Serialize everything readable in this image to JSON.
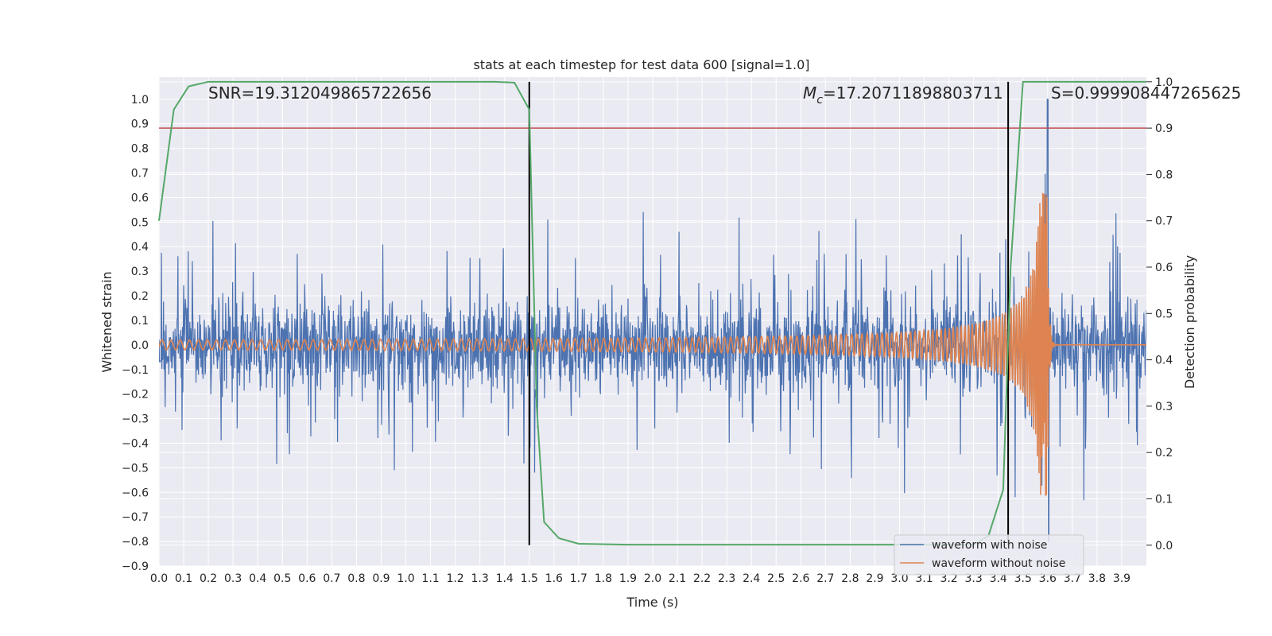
{
  "chart_data": {
    "type": "line",
    "title": "stats at each timestep for test data 600 [signal=1.0]",
    "xlabel": "Time (s)",
    "ylabel_left": "Whitened strain",
    "ylabel_right": "Detection probability",
    "xlim": [
      0.0,
      4.0
    ],
    "ylim_left": [
      -0.9,
      1.09
    ],
    "ylim_right": [
      -0.045,
      1.01
    ],
    "x_ticks": [
      "0.0",
      "0.1",
      "0.2",
      "0.3",
      "0.4",
      "0.5",
      "0.6",
      "0.7",
      "0.8",
      "0.9",
      "1.0",
      "1.1",
      "1.2",
      "1.3",
      "1.4",
      "1.5",
      "1.6",
      "1.7",
      "1.8",
      "1.9",
      "2.0",
      "2.1",
      "2.2",
      "2.3",
      "2.4",
      "2.5",
      "2.6",
      "2.7",
      "2.8",
      "2.9",
      "3.0",
      "3.1",
      "3.2",
      "3.3",
      "3.4",
      "3.5",
      "3.6",
      "3.7",
      "3.8",
      "3.9"
    ],
    "y_ticks_left": [
      "−0.9",
      "−0.8",
      "−0.7",
      "−0.6",
      "−0.5",
      "−0.4",
      "−0.3",
      "−0.2",
      "−0.1",
      "0.0",
      "0.1",
      "0.2",
      "0.3",
      "0.4",
      "0.5",
      "0.6",
      "0.7",
      "0.8",
      "0.9",
      "1.0"
    ],
    "y_ticks_right": [
      "0.0",
      "0.1",
      "0.2",
      "0.3",
      "0.4",
      "0.5",
      "0.6",
      "0.7",
      "0.8",
      "0.9",
      "1.0"
    ],
    "grid": true,
    "legend_position": "lower-right",
    "colors": {
      "background": "#EAEAF2",
      "grid": "#FFFFFF",
      "noise_series": "#4C72B0",
      "clean_series": "#DD8452",
      "probability": "#55A868",
      "threshold": "#C44E52",
      "markers": "#000000"
    },
    "annotations": {
      "snr": "SNR=19.312049865722656",
      "mc_symbol": "M",
      "mc_sub": "c",
      "mc_value": "=17.20711898803711",
      "s": "S=0.999908447265625"
    },
    "series": [
      {
        "name": "waveform with noise",
        "description": "whitened noisy strain, roughly ±0.5 with spikes up to 1.0 near t=3.6 s"
      },
      {
        "name": "waveform without noise",
        "description": "chirp signal, amplitude growing from 0.02 to ~0.65 with peak at t≈3.6 s, then ringdown to 0"
      }
    ],
    "detection_probability": {
      "x": [
        0.0,
        0.06,
        0.12,
        0.2,
        0.3,
        0.5,
        1.0,
        1.36,
        1.44,
        1.5,
        1.53,
        1.56,
        1.62,
        1.7,
        1.9,
        2.5,
        3.0,
        3.3,
        3.36,
        3.42,
        3.45,
        3.5,
        3.53,
        3.6,
        3.7,
        3.8,
        3.9,
        4.0
      ],
      "y": [
        0.7,
        0.94,
        0.99,
        1.0,
        1.0,
        1.0,
        1.0,
        1.0,
        0.998,
        0.94,
        0.3,
        0.05,
        0.015,
        0.003,
        0.001,
        0.001,
        0.001,
        0.001,
        0.02,
        0.12,
        0.6,
        1.0,
        1.0,
        1.0,
        1.0,
        1.0,
        1.0,
        1.0
      ]
    },
    "threshold_y_right": 0.9,
    "marker_lines": [
      {
        "x": 1.5,
        "y_top_right": 1.0,
        "y_bottom_right": 0.0
      },
      {
        "x": 3.44,
        "y_top_right": 1.0,
        "y_bottom_right": 0.0
      }
    ],
    "peak_time": 3.6
  }
}
